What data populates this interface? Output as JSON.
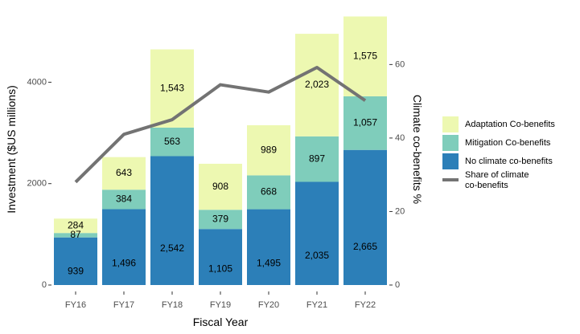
{
  "chart_data": {
    "type": "bar",
    "stacked": true,
    "categories": [
      "FY16",
      "FY17",
      "FY18",
      "FY19",
      "FY20",
      "FY21",
      "FY22"
    ],
    "series": [
      {
        "name": "No climate co-benefits",
        "values": [
          939,
          1496,
          2542,
          1105,
          1495,
          2035,
          2665
        ],
        "labels": [
          "939",
          "1,496",
          "2,542",
          "1,105",
          "1,495",
          "2,035",
          "2,665"
        ],
        "color": "#2c7fb8"
      },
      {
        "name": "Mitigation Co-benefits",
        "values": [
          87,
          384,
          563,
          379,
          668,
          897,
          1057
        ],
        "labels": [
          "87",
          "384",
          "563",
          "379",
          "668",
          "897",
          "1,057"
        ],
        "color": "#7fcdbb"
      },
      {
        "name": "Adaptation Co-benefits",
        "values": [
          284,
          643,
          1543,
          908,
          989,
          2023,
          1575
        ],
        "labels": [
          "284",
          "643",
          "1,543",
          "908",
          "989",
          "2,023",
          "1,575"
        ],
        "color": "#edf8b1"
      }
    ],
    "line_series": {
      "name": "Share of climate co-benefits",
      "name_lines": [
        "Share of climate",
        "co-benefits"
      ],
      "values": [
        28,
        41,
        45,
        54.5,
        52.5,
        59.2,
        50.2
      ],
      "color": "#737373",
      "axis": "right"
    },
    "xlabel": "Fiscal Year",
    "ylabel": "Investment ($US millions)",
    "y2label": "Climate co-benefits %",
    "ylim": [
      0,
      5400
    ],
    "yticks": [
      0,
      2000,
      4000
    ],
    "ytick_labels": [
      "0",
      "2000",
      "4000"
    ],
    "y2lim": [
      0,
      74.5
    ],
    "y2ticks": [
      0,
      20,
      40,
      60
    ],
    "y2tick_labels": [
      "0",
      "20",
      "40",
      "60"
    ],
    "legend": {
      "position": "right",
      "order": [
        "Adaptation Co-benefits",
        "Mitigation Co-benefits",
        "No climate co-benefits",
        "Share of climate co-benefits"
      ]
    },
    "grid": false
  }
}
